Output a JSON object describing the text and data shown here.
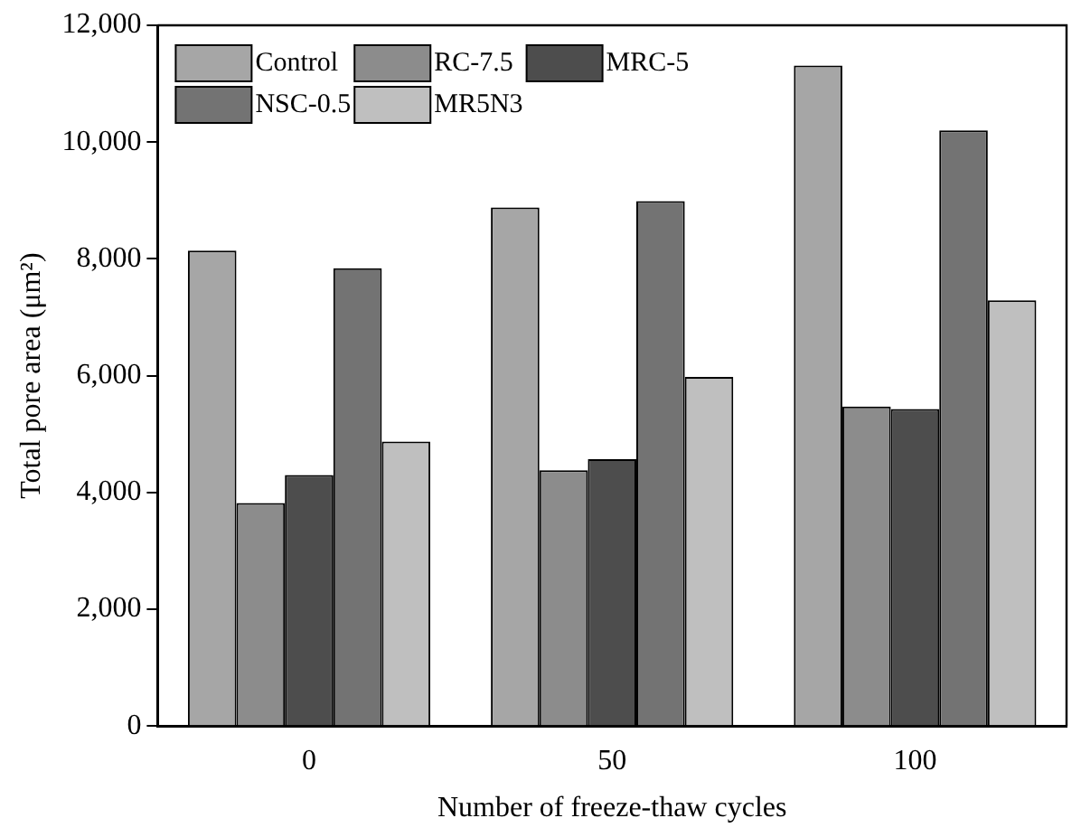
{
  "chart_data": {
    "type": "bar",
    "xlabel": "Number of freeze-thaw cycles",
    "ylabel": "Total pore area (μm²)",
    "categories": [
      "0",
      "50",
      "100"
    ],
    "series": [
      {
        "name": "Control",
        "color": "#a6a6a6",
        "values": [
          8140,
          8880,
          11310
        ]
      },
      {
        "name": "RC-7.5",
        "color": "#8c8c8c",
        "values": [
          3820,
          4380,
          5470
        ]
      },
      {
        "name": "MRC-5",
        "color": "#4d4d4d",
        "values": [
          4300,
          4570,
          5430
        ]
      },
      {
        "name": "NSC-0.5",
        "color": "#737373",
        "values": [
          7840,
          8990,
          10200
        ]
      },
      {
        "name": "MR5N3",
        "color": "#bfbfbf",
        "values": [
          4870,
          5980,
          7290
        ]
      }
    ],
    "ylim": [
      0,
      12000
    ],
    "yticks": [
      {
        "value": 0,
        "label": "0"
      },
      {
        "value": 2000,
        "label": "2,000"
      },
      {
        "value": 4000,
        "label": "4,000"
      },
      {
        "value": 6000,
        "label": "6,000"
      },
      {
        "value": 8000,
        "label": "8,000"
      },
      {
        "value": 10000,
        "label": "10,000"
      },
      {
        "value": 12000,
        "label": "12,000"
      }
    ],
    "grid": false,
    "legend": "top left"
  }
}
